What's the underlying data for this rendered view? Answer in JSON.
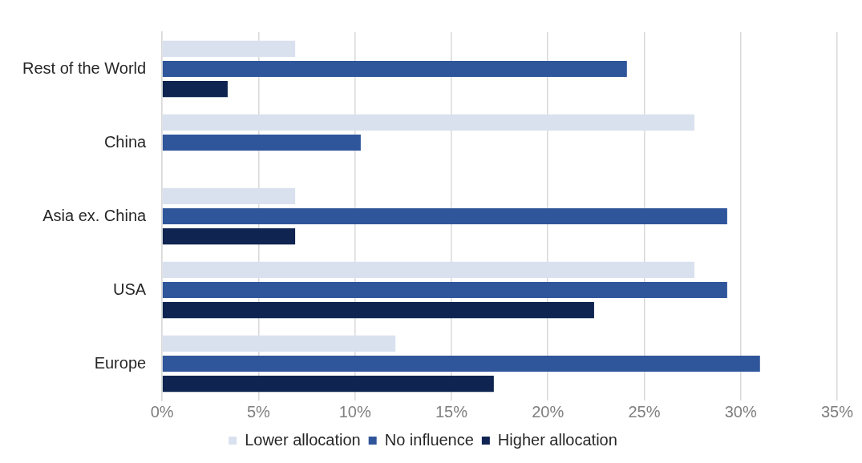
{
  "chart_data": {
    "type": "bar",
    "orientation": "horizontal",
    "categories": [
      "Rest of the World",
      "China",
      "Asia ex. China",
      "USA",
      "Europe"
    ],
    "series": [
      {
        "name": "Lower allocation",
        "color": "#d9e1ef",
        "values": [
          6.9,
          27.6,
          6.9,
          27.6,
          12.1
        ]
      },
      {
        "name": "No influence",
        "color": "#2f559b",
        "values": [
          24.1,
          10.3,
          29.3,
          29.3,
          31.0
        ]
      },
      {
        "name": "Higher allocation",
        "color": "#0f2450",
        "values": [
          3.4,
          0,
          6.9,
          22.4,
          17.2
        ]
      }
    ],
    "xlim": [
      0,
      35
    ],
    "xticks": [
      {
        "value": 0,
        "label": "0%"
      },
      {
        "value": 5,
        "label": "5%"
      },
      {
        "value": 10,
        "label": "10%"
      },
      {
        "value": 15,
        "label": "15%"
      },
      {
        "value": 20,
        "label": "20%"
      },
      {
        "value": 25,
        "label": "25%"
      },
      {
        "value": 30,
        "label": "30%"
      },
      {
        "value": 35,
        "label": "35%"
      }
    ],
    "grid": "x",
    "legend": "bottom"
  }
}
